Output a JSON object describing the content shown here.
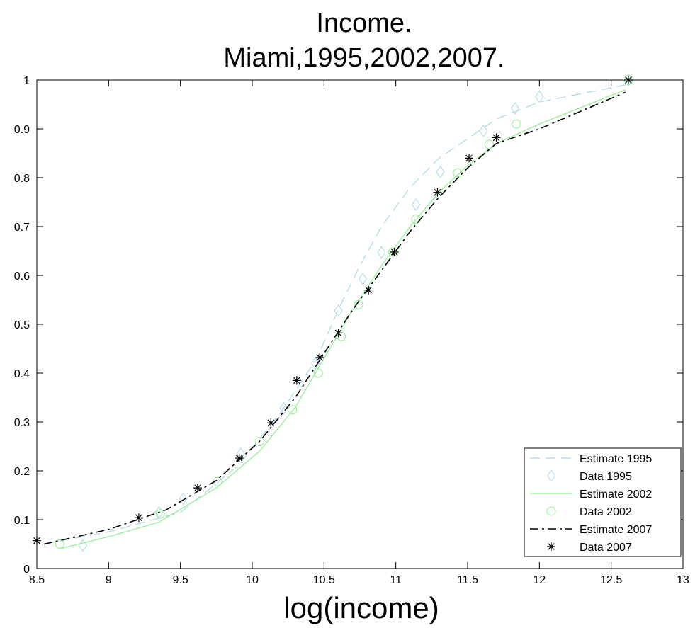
{
  "chart_data": {
    "type": "line",
    "title": [
      "Income.",
      "Miami,1995,2002,2007."
    ],
    "xlabel": "log(income)",
    "ylabel": "",
    "xlim": [
      8.5,
      13
    ],
    "ylim": [
      0,
      1
    ],
    "xticks": [
      "8.5",
      "9",
      "9.5",
      "10",
      "10.5",
      "11",
      "11.5",
      "12",
      "12.5",
      "13"
    ],
    "yticks": [
      "0",
      "0.1",
      "0.2",
      "0.3",
      "0.4",
      "0.5",
      "0.6",
      "0.7",
      "0.8",
      "0.9",
      "1"
    ],
    "grid": false,
    "legend_position": "bottom-right",
    "series": [
      {
        "name": "Estimate 1995",
        "kind": "line",
        "style": "dashed",
        "color": "#add8e6",
        "x": [
          8.55,
          9.0,
          9.5,
          9.9,
          10.2,
          10.45,
          10.6,
          10.75,
          10.9,
          11.1,
          11.3,
          11.5,
          11.7,
          12.0,
          12.6
        ],
        "y": [
          0.05,
          0.075,
          0.115,
          0.21,
          0.32,
          0.43,
          0.53,
          0.62,
          0.7,
          0.78,
          0.84,
          0.88,
          0.92,
          0.955,
          0.99
        ]
      },
      {
        "name": "Data 1995",
        "kind": "marker",
        "marker": "diamond",
        "color": "#add8e6",
        "x": [
          8.82,
          9.35,
          9.52,
          9.92,
          10.22,
          10.44,
          10.6,
          10.77,
          10.9,
          11.14,
          11.31,
          11.61,
          11.83,
          12.0,
          12.62
        ],
        "y": [
          0.047,
          0.115,
          0.143,
          0.235,
          0.328,
          0.42,
          0.528,
          0.593,
          0.647,
          0.745,
          0.812,
          0.896,
          0.942,
          0.966,
          1.0
        ]
      },
      {
        "name": "Estimate 2002",
        "kind": "line",
        "style": "solid",
        "color": "#90ee90",
        "x": [
          8.65,
          9.0,
          9.35,
          9.75,
          10.05,
          10.3,
          10.5,
          10.7,
          10.9,
          11.1,
          11.3,
          11.5,
          11.7,
          12.0,
          12.6
        ],
        "y": [
          0.04,
          0.065,
          0.095,
          0.165,
          0.24,
          0.33,
          0.43,
          0.53,
          0.62,
          0.7,
          0.77,
          0.825,
          0.87,
          0.91,
          0.98
        ]
      },
      {
        "name": "Data 2002",
        "kind": "marker",
        "marker": "circle",
        "color": "#90ee90",
        "x": [
          8.66,
          9.36,
          9.76,
          10.05,
          10.28,
          10.46,
          10.62,
          10.74,
          10.98,
          11.14,
          11.43,
          11.65,
          11.84,
          12.62
        ],
        "y": [
          0.05,
          0.112,
          0.178,
          0.26,
          0.325,
          0.4,
          0.475,
          0.54,
          0.648,
          0.715,
          0.81,
          0.868,
          0.91,
          1.0
        ]
      },
      {
        "name": "Estimate 2007",
        "kind": "line",
        "style": "dashdot",
        "color": "#000000",
        "x": [
          8.55,
          9.0,
          9.4,
          9.75,
          10.05,
          10.3,
          10.5,
          10.7,
          10.9,
          11.1,
          11.3,
          11.5,
          11.7,
          12.0,
          12.6
        ],
        "y": [
          0.05,
          0.08,
          0.12,
          0.18,
          0.26,
          0.35,
          0.44,
          0.53,
          0.61,
          0.69,
          0.76,
          0.82,
          0.87,
          0.9,
          0.975
        ]
      },
      {
        "name": "Data 2007",
        "kind": "marker",
        "marker": "asterisk",
        "color": "#000000",
        "x": [
          8.5,
          9.21,
          9.62,
          9.91,
          10.13,
          10.31,
          10.47,
          10.6,
          10.81,
          10.99,
          11.29,
          11.51,
          11.7,
          12.62
        ],
        "y": [
          0.057,
          0.104,
          0.165,
          0.226,
          0.298,
          0.385,
          0.432,
          0.482,
          0.57,
          0.648,
          0.77,
          0.84,
          0.882,
          1.0
        ]
      }
    ]
  }
}
